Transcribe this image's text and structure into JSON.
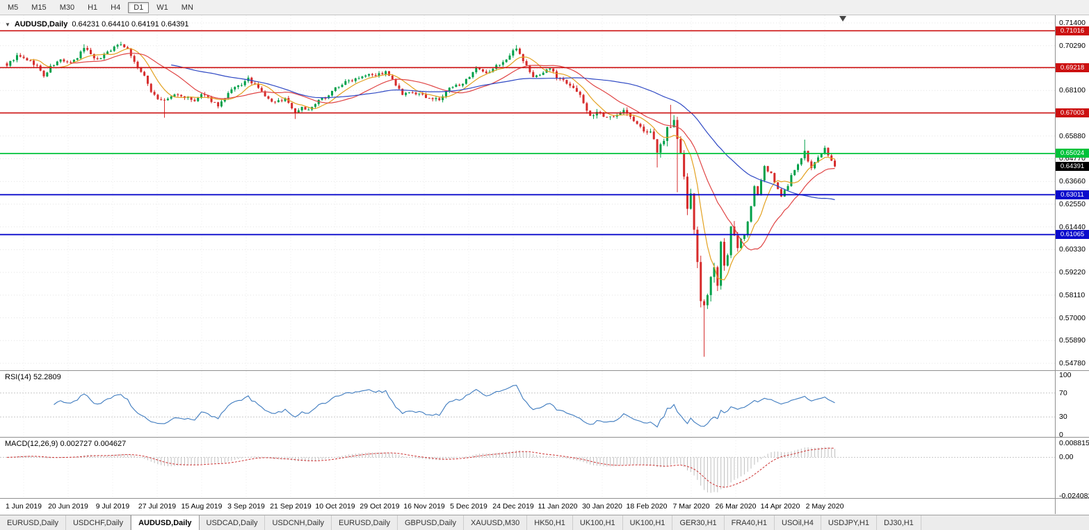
{
  "toolbar": {
    "timeframes": [
      "M5",
      "M15",
      "M30",
      "H1",
      "H4",
      "D1",
      "W1",
      "MN"
    ],
    "active": "D1"
  },
  "chart": {
    "dropdown_icon": "▼",
    "symbol": "AUDUSD,Daily",
    "ohlc": "0.64231 0.64410 0.64191 0.64391",
    "current_price": {
      "label": "0.64391",
      "price": 0.64391,
      "color": "#000000"
    },
    "y_axis": [
      "0.71400",
      "0.70290",
      "0.69180",
      "0.68100",
      "0.66990",
      "0.65880",
      "0.64770",
      "0.63660",
      "0.62550",
      "0.61440",
      "0.60330",
      "0.59220",
      "0.58110",
      "0.57000",
      "0.55890",
      "0.54780"
    ],
    "hlines": [
      {
        "label": "0.71016",
        "price": 0.71016,
        "color": "#CC1111",
        "width": 1.6
      },
      {
        "label": "0.69218",
        "price": 0.69218,
        "color": "#CC1111",
        "width": 1.6
      },
      {
        "label": "0.67003",
        "price": 0.67003,
        "color": "#CC1111",
        "width": 1.6
      },
      {
        "label": "0.65024",
        "price": 0.65024,
        "color": "#00C23A",
        "width": 1.8
      },
      {
        "label": "0.63011",
        "price": 0.63011,
        "color": "#0A0ACC",
        "width": 1.8
      },
      {
        "label": "0.61065",
        "price": 0.61065,
        "color": "#0A0ACC",
        "width": 1.8
      }
    ],
    "x_labels": [
      "1 Jun 2019",
      "20 Jun 2019",
      "9 Jul 2019",
      "27 Jul 2019",
      "15 Aug 2019",
      "3 Sep 2019",
      "21 Sep 2019",
      "10 Oct 2019",
      "29 Oct 2019",
      "16 Nov 2019",
      "5 Dec 2019",
      "24 Dec 2019",
      "11 Jan 2020",
      "30 Jan 2020",
      "18 Feb 2020",
      "7 Mar 2020",
      "26 Mar 2020",
      "14 Apr 2020",
      "2 May 2020"
    ],
    "candles": {
      "count": 248,
      "anchors": [
        [
          0,
          0.6935
        ],
        [
          3,
          0.6978
        ],
        [
          6,
          0.696
        ],
        [
          9,
          0.693
        ],
        [
          11,
          0.6878
        ],
        [
          13,
          0.6924
        ],
        [
          16,
          0.696
        ],
        [
          19,
          0.6942
        ],
        [
          21,
          0.6968
        ],
        [
          23,
          0.7022
        ],
        [
          25,
          0.699
        ],
        [
          27,
          0.6958
        ],
        [
          30,
          0.7
        ],
        [
          34,
          0.704
        ],
        [
          36,
          0.7015
        ],
        [
          38,
          0.6948
        ],
        [
          41,
          0.6876
        ],
        [
          43,
          0.6808
        ],
        [
          45,
          0.677
        ],
        [
          47,
          0.6758
        ],
        [
          50,
          0.679
        ],
        [
          53,
          0.6778
        ],
        [
          56,
          0.6756
        ],
        [
          58,
          0.679
        ],
        [
          60,
          0.6772
        ],
        [
          63,
          0.6738
        ],
        [
          65,
          0.677
        ],
        [
          67,
          0.6812
        ],
        [
          70,
          0.684
        ],
        [
          72,
          0.6866
        ],
        [
          75,
          0.682
        ],
        [
          78,
          0.6766
        ],
        [
          80,
          0.675
        ],
        [
          83,
          0.6772
        ],
        [
          86,
          0.6702
        ],
        [
          88,
          0.673
        ],
        [
          90,
          0.6712
        ],
        [
          93,
          0.6758
        ],
        [
          96,
          0.679
        ],
        [
          98,
          0.6823
        ],
        [
          101,
          0.685
        ],
        [
          104,
          0.687
        ],
        [
          108,
          0.6895
        ],
        [
          110,
          0.6885
        ],
        [
          113,
          0.6899
        ],
        [
          115,
          0.686
        ],
        [
          118,
          0.6788
        ],
        [
          121,
          0.68
        ],
        [
          124,
          0.6784
        ],
        [
          127,
          0.677
        ],
        [
          129,
          0.6764
        ],
        [
          132,
          0.682
        ],
        [
          135,
          0.684
        ],
        [
          138,
          0.687
        ],
        [
          140,
          0.6917
        ],
        [
          143,
          0.689
        ],
        [
          146,
          0.693
        ],
        [
          149,
          0.696
        ],
        [
          152,
          0.7021
        ],
        [
          153,
          0.6988
        ],
        [
          155,
          0.693
        ],
        [
          157,
          0.6873
        ],
        [
          160,
          0.69
        ],
        [
          162,
          0.692
        ],
        [
          164,
          0.6875
        ],
        [
          167,
          0.685
        ],
        [
          169,
          0.6827
        ],
        [
          171,
          0.678
        ],
        [
          174,
          0.6687
        ],
        [
          176,
          0.67
        ],
        [
          179,
          0.6673
        ],
        [
          181,
          0.669
        ],
        [
          184,
          0.6712
        ],
        [
          186,
          0.668
        ],
        [
          189,
          0.6627
        ],
        [
          192,
          0.66
        ],
        [
          194,
          0.6515
        ],
        [
          195,
          0.6537
        ],
        [
          197,
          0.6627
        ],
        [
          199,
          0.666
        ],
        [
          200,
          0.6581
        ],
        [
          201,
          0.6495
        ],
        [
          202,
          0.639
        ],
        [
          203,
          0.6232
        ],
        [
          204,
          0.629
        ],
        [
          205,
          0.6119
        ],
        [
          206,
          0.598
        ],
        [
          207,
          0.5793
        ],
        [
          208,
          0.5744
        ],
        [
          209,
          0.5798
        ],
        [
          210,
          0.588
        ],
        [
          211,
          0.5966
        ],
        [
          212,
          0.587
        ],
        [
          213,
          0.6066
        ],
        [
          214,
          0.597
        ],
        [
          215,
          0.599
        ],
        [
          216,
          0.6136
        ],
        [
          217,
          0.609
        ],
        [
          218,
          0.6059
        ],
        [
          220,
          0.61
        ],
        [
          221,
          0.6164
        ],
        [
          222,
          0.625
        ],
        [
          223,
          0.6349
        ],
        [
          224,
          0.63
        ],
        [
          226,
          0.6437
        ],
        [
          228,
          0.64
        ],
        [
          229,
          0.6364
        ],
        [
          231,
          0.629
        ],
        [
          233,
          0.635
        ],
        [
          234,
          0.6393
        ],
        [
          236,
          0.645
        ],
        [
          238,
          0.6512
        ],
        [
          239,
          0.646
        ],
        [
          240,
          0.6428
        ],
        [
          242,
          0.648
        ],
        [
          244,
          0.6532
        ],
        [
          245,
          0.65
        ],
        [
          246,
          0.647
        ],
        [
          247,
          0.64391
        ]
      ],
      "wick_overrides": [
        {
          "i": 23,
          "high": 0.7036
        },
        {
          "i": 34,
          "high": 0.7048
        },
        {
          "i": 47,
          "low": 0.6677
        },
        {
          "i": 86,
          "low": 0.6671
        },
        {
          "i": 152,
          "high": 0.7032
        },
        {
          "i": 194,
          "low": 0.6434
        },
        {
          "i": 198,
          "high": 0.674
        },
        {
          "i": 200,
          "low": 0.6313
        },
        {
          "i": 208,
          "low": 0.551
        },
        {
          "i": 238,
          "high": 0.657
        }
      ]
    },
    "ma": [
      {
        "period": 8,
        "color": "#E3A120"
      },
      {
        "period": 20,
        "color": "#E04545"
      },
      {
        "period": 50,
        "color": "#2F49C4"
      }
    ]
  },
  "rsi": {
    "label": "RSI(14) 52.2809",
    "levels": [
      {
        "label": "100",
        "value": 100
      },
      {
        "label": "70",
        "value": 70
      },
      {
        "label": "30",
        "value": 30
      },
      {
        "label": "0",
        "value": 0
      }
    ],
    "line_color": "#3E7BBF"
  },
  "macd": {
    "label": "MACD(12,26,9) 0.002727 0.004627",
    "max": 0.008815,
    "min": -0.024082,
    "levels": [
      {
        "label": "0.008815",
        "value": 0.008815
      },
      {
        "label": "0.00",
        "value": 0
      },
      {
        "label": "-0.024082",
        "value": -0.024082
      }
    ]
  },
  "tabs": {
    "active_index": 2,
    "items": [
      "EURUSD,Daily",
      "USDCHF,Daily",
      "AUDUSD,Daily",
      "USDCAD,Daily",
      "USDCNH,Daily",
      "EURUSD,Daily",
      "GBPUSD,Daily",
      "XAUUSD,M30",
      "HK50,H1",
      "UK100,H1",
      "UK100,H1",
      "GER30,H1",
      "FRA40,H1",
      "USOil,H4",
      "USDJPY,H1",
      "DJ30,H1"
    ]
  },
  "colors": {
    "candle_up": "#00A049",
    "candle_down": "#D62B2B",
    "grid": "#E4E4E4",
    "vgrid": "#ECECEC",
    "level_line": "#C8C8C8",
    "separator": "#909090",
    "rsi_line": "#3E7BBF",
    "macd_hist": "#BFBFBF",
    "macd_signal": "#CC3333",
    "shift_marker": "#444444"
  }
}
